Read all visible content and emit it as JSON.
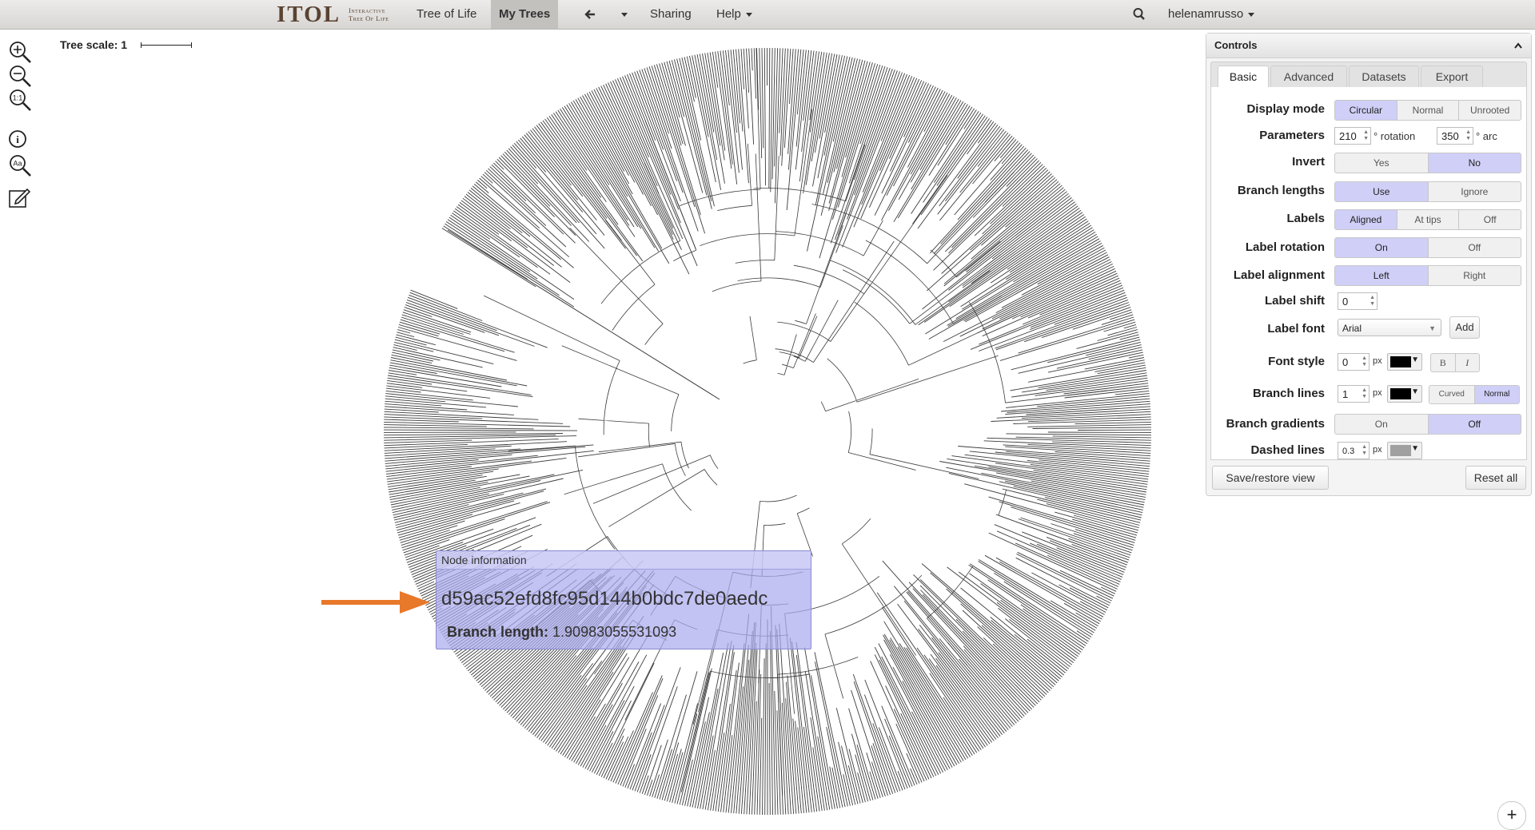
{
  "app": {
    "logo_main": "ITOL",
    "logo_sub_1": "Interactive",
    "logo_sub_2": "Tree Of Life"
  },
  "nav": {
    "tree_of_life": "Tree of Life",
    "my_trees": "My Trees",
    "sharing": "Sharing",
    "help": "Help",
    "user": "helenamrusso"
  },
  "left_tools": [
    "zoom-in-icon",
    "zoom-out-icon",
    "zoom-fit-icon",
    "info-icon",
    "text-search-icon",
    "edit-icon"
  ],
  "tree_scale": {
    "label": "Tree scale: 1"
  },
  "node_info": {
    "header": "Node information",
    "node_id": "d59ac52efd8fc95d144b0bdc7de0aedc",
    "branch_label": "Branch length:",
    "branch_value": "1.90983055531093"
  },
  "controls": {
    "title": "Controls",
    "tabs": [
      "Basic",
      "Advanced",
      "Datasets",
      "Export"
    ],
    "active_tab": "Basic",
    "display_mode": {
      "label": "Display mode",
      "options": [
        "Circular",
        "Normal",
        "Unrooted"
      ],
      "selected": "Circular"
    },
    "parameters": {
      "label": "Parameters",
      "rotation_value": "210",
      "rotation_unit": "° rotation",
      "arc_value": "350",
      "arc_unit": "° arc"
    },
    "invert": {
      "label": "Invert",
      "options": [
        "Yes",
        "No"
      ],
      "selected": "No"
    },
    "branch_lengths": {
      "label": "Branch lengths",
      "options": [
        "Use",
        "Ignore"
      ],
      "selected": "Use"
    },
    "labels": {
      "label": "Labels",
      "options": [
        "Aligned",
        "At tips",
        "Off"
      ],
      "selected": "Aligned"
    },
    "label_rotation": {
      "label": "Label rotation",
      "options": [
        "On",
        "Off"
      ],
      "selected": "On"
    },
    "label_alignment": {
      "label": "Label alignment",
      "options": [
        "Left",
        "Right"
      ],
      "selected": "Left"
    },
    "label_shift": {
      "label": "Label shift",
      "value": "0"
    },
    "label_font": {
      "label": "Label font",
      "value": "Arial",
      "add": "Add"
    },
    "font_style": {
      "label": "Font style",
      "size": "0",
      "unit": "px",
      "color": "#000000",
      "bold": "B",
      "italic": "I"
    },
    "branch_lines": {
      "label": "Branch lines",
      "width": "1",
      "unit": "px",
      "color": "#000000",
      "options": [
        "Curved",
        "Normal"
      ],
      "selected": "Normal"
    },
    "branch_gradients": {
      "label": "Branch gradients",
      "options": [
        "On",
        "Off"
      ],
      "selected": "Off"
    },
    "dashed_lines": {
      "label": "Dashed lines",
      "width": "0.3",
      "unit": "px",
      "color": "#a0a0a0"
    },
    "save_restore": "Save/restore view",
    "reset_all": "Reset all"
  },
  "colors": {
    "accent_selected": "#cfcff7",
    "arrow": "#e8782a",
    "tree": "#3b3b3b"
  }
}
